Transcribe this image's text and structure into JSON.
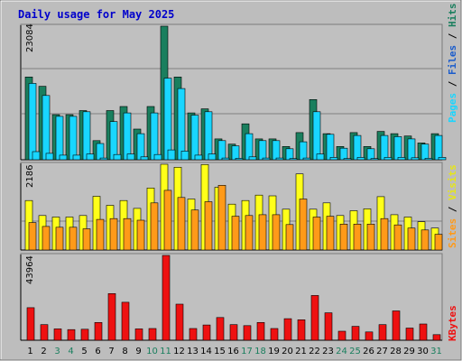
{
  "title": "Daily usage for May 2025",
  "colors": {
    "frame_bg": "#bdbdbd",
    "plot_bg": "#c0c0c0",
    "hits": "#1a7f5e",
    "files": "#19d6ff",
    "pages": "#19d6ff",
    "visits": "#ffff19",
    "sites": "#ff9a19",
    "kbytes": "#ee1111",
    "title": "#0000cc",
    "weekend_tick": "#1a7f5e",
    "weekday_tick": "#000000"
  },
  "legends": {
    "panel1": {
      "pages": "Pages",
      "sep1": " / ",
      "files": "Files",
      "sep2": " / ",
      "hits": "Hits"
    },
    "panel2": {
      "sites": "Sites",
      "sep1": " / ",
      "visits": "Visits"
    },
    "panel3": {
      "kbytes": "KBytes"
    }
  },
  "chart_data": [
    {
      "type": "bar",
      "panel": "hits_files_pages",
      "ymax_label": "23084",
      "ylim": [
        0,
        23084
      ],
      "categories": [
        "1",
        "2",
        "3",
        "4",
        "5",
        "6",
        "7",
        "8",
        "9",
        "10",
        "11",
        "12",
        "13",
        "14",
        "15",
        "16",
        "17",
        "18",
        "19",
        "20",
        "21",
        "22",
        "23",
        "24",
        "25",
        "26",
        "27",
        "28",
        "29",
        "30",
        "31"
      ],
      "weekend": [
        "3",
        "4",
        "10",
        "11",
        "17",
        "18",
        "24",
        "25",
        "31"
      ],
      "series": [
        {
          "name": "Hits",
          "values": [
            14300,
            12700,
            7800,
            7800,
            8500,
            3300,
            8500,
            9200,
            5300,
            9200,
            23084,
            14300,
            8100,
            8800,
            3600,
            2700,
            6200,
            3600,
            3600,
            2300,
            4700,
            10400,
            4500,
            2300,
            4700,
            2300,
            4900,
            4500,
            4100,
            2900,
            4500
          ]
        },
        {
          "name": "Files",
          "values": [
            13200,
            11100,
            7500,
            7500,
            8300,
            2800,
            6600,
            8100,
            4500,
            8100,
            14100,
            12300,
            7700,
            8300,
            3300,
            2400,
            4500,
            3300,
            3300,
            1900,
            3100,
            8300,
            4400,
            2000,
            4200,
            1900,
            4200,
            4000,
            3600,
            2700,
            4200
          ]
        },
        {
          "name": "Pages",
          "values": [
            1400,
            1100,
            800,
            800,
            1000,
            300,
            900,
            1000,
            500,
            900,
            1700,
            1500,
            800,
            1000,
            300,
            250,
            500,
            300,
            300,
            200,
            300,
            1000,
            400,
            200,
            400,
            200,
            400,
            400,
            350,
            250,
            400
          ]
        }
      ]
    },
    {
      "type": "bar",
      "panel": "visits_sites",
      "ymax_label": "2186",
      "ylim": [
        0,
        2186
      ],
      "categories": [
        "1",
        "2",
        "3",
        "4",
        "5",
        "6",
        "7",
        "8",
        "9",
        "10",
        "11",
        "12",
        "13",
        "14",
        "15",
        "16",
        "17",
        "18",
        "19",
        "20",
        "21",
        "22",
        "23",
        "24",
        "25",
        "26",
        "27",
        "28",
        "29",
        "30",
        "31"
      ],
      "series": [
        {
          "name": "Visits",
          "values": [
            1260,
            880,
            840,
            840,
            880,
            1370,
            1140,
            1260,
            1060,
            1580,
            2186,
            2110,
            1300,
            2180,
            1600,
            1170,
            1260,
            1400,
            1380,
            1040,
            1940,
            1040,
            1200,
            880,
            1000,
            1050,
            1360,
            900,
            840,
            720,
            560
          ]
        },
        {
          "name": "Sites",
          "values": [
            700,
            600,
            580,
            580,
            540,
            780,
            800,
            800,
            760,
            1200,
            1520,
            1340,
            1020,
            1230,
            1650,
            860,
            880,
            900,
            900,
            650,
            1300,
            840,
            860,
            660,
            660,
            660,
            800,
            640,
            560,
            510,
            400
          ]
        }
      ]
    },
    {
      "type": "bar",
      "panel": "kbytes",
      "ymax_label": "43964",
      "ylim": [
        0,
        43964
      ],
      "categories": [
        "1",
        "2",
        "3",
        "4",
        "5",
        "6",
        "7",
        "8",
        "9",
        "10",
        "11",
        "12",
        "13",
        "14",
        "15",
        "16",
        "17",
        "18",
        "19",
        "20",
        "21",
        "22",
        "23",
        "24",
        "25",
        "26",
        "27",
        "28",
        "29",
        "30",
        "31"
      ],
      "series": [
        {
          "name": "KBytes",
          "values": [
            16900,
            8100,
            5900,
            5500,
            5700,
            9200,
            24200,
            19700,
            5900,
            6100,
            43964,
            18700,
            6100,
            7900,
            11800,
            8100,
            7600,
            9200,
            6100,
            11200,
            10600,
            23200,
            14200,
            4700,
            7200,
            4300,
            8100,
            15200,
            6300,
            8400,
            2900
          ]
        }
      ]
    }
  ]
}
